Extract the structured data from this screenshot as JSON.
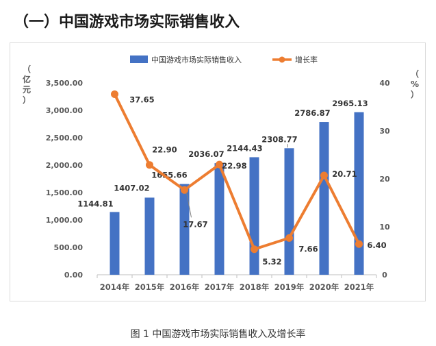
{
  "heading": "（一）中国游戏市场实际销售收入",
  "caption": "图 1 中国游戏市场实际销售收入及增长率",
  "colors": {
    "bar": "#4472C4",
    "line": "#ED7D31",
    "leader": "#7f7f7f"
  },
  "chart_data": {
    "type": "bar+line",
    "categories": [
      "2014年",
      "2015年",
      "2016年",
      "2017年",
      "2018年",
      "2019年",
      "2020年",
      "2021年"
    ],
    "series": [
      {
        "name": "中国游戏市场实际销售收入",
        "type": "bar",
        "axis": "left",
        "values": [
          1144.81,
          1407.02,
          1655.66,
          2036.07,
          2144.43,
          2308.77,
          2786.87,
          2965.13
        ],
        "labels": [
          "1144.81",
          "1407.02",
          "1655.66",
          "2036.07",
          "2144.43",
          "2308.77",
          "2786.87",
          "2965.13"
        ]
      },
      {
        "name": "增长率",
        "type": "line",
        "axis": "right",
        "values": [
          37.65,
          22.9,
          17.67,
          22.98,
          5.32,
          7.66,
          20.71,
          6.4
        ],
        "labels": [
          "37.65",
          "22.90",
          "17.67",
          "22.98",
          "5.32",
          "7.66",
          "20.71",
          "6.40"
        ]
      }
    ],
    "left_axis": {
      "label": "（亿元）",
      "ylim": [
        0,
        3500
      ],
      "ticks": [
        "0.00",
        "500.00",
        "1,000.00",
        "1,500.00",
        "2,000.00",
        "2,500.00",
        "3,000.00",
        "3,500.00"
      ]
    },
    "right_axis": {
      "label": "（%）",
      "ylim": [
        0,
        40
      ],
      "ticks": [
        "0",
        "10",
        "20",
        "30",
        "40"
      ]
    },
    "legend": "top",
    "grid": false
  }
}
